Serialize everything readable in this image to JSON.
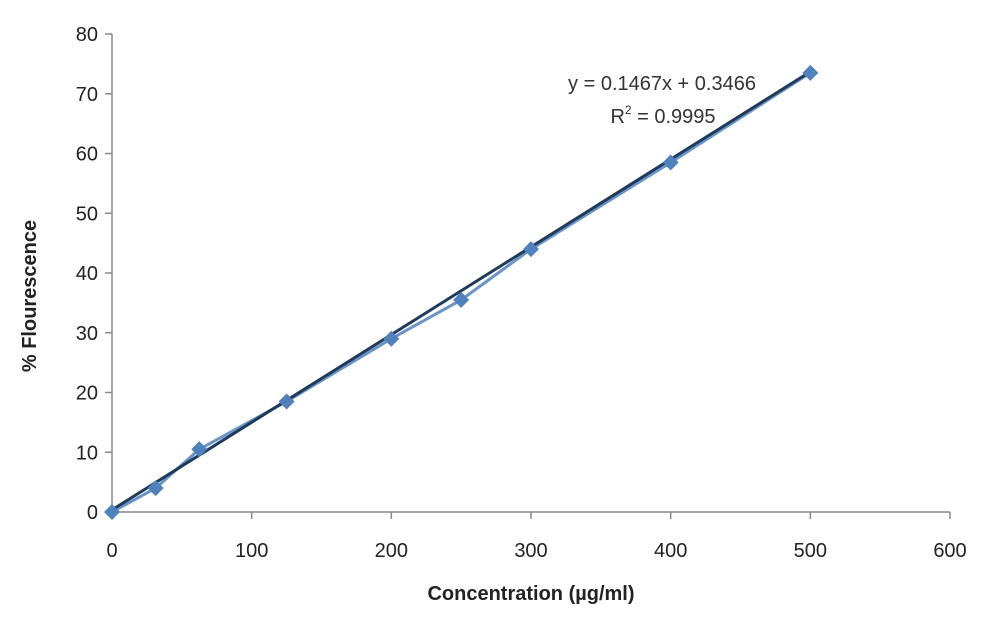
{
  "chart_data": {
    "type": "scatter",
    "title": "",
    "xlabel": "Concentration (µg/ml)",
    "ylabel": "% Flourescence",
    "xlim": [
      0,
      600
    ],
    "ylim": [
      0,
      80
    ],
    "x_ticks": [
      0,
      100,
      200,
      300,
      400,
      500,
      600
    ],
    "y_ticks": [
      0,
      10,
      20,
      30,
      40,
      50,
      60,
      70,
      80
    ],
    "grid": false,
    "legend": "none",
    "series": [
      {
        "x": [
          0,
          31.25,
          62.5,
          125,
          200,
          250,
          300,
          400,
          500
        ],
        "y": [
          0,
          4,
          10.5,
          18.5,
          29,
          35.5,
          44,
          58.5,
          73.5
        ],
        "color": "#4f81bd",
        "marker": "diamond",
        "connected": true
      }
    ],
    "trendline": {
      "slope": 0.1467,
      "intercept": 0.3466,
      "x_range": [
        0,
        500
      ],
      "color": "#1f3b5c"
    },
    "annotations": {
      "equation": "y = 0.1467x + 0.3466",
      "r2_prefix": "R",
      "r2_sup": "2",
      "r2_suffix": " = 0.9995"
    }
  }
}
